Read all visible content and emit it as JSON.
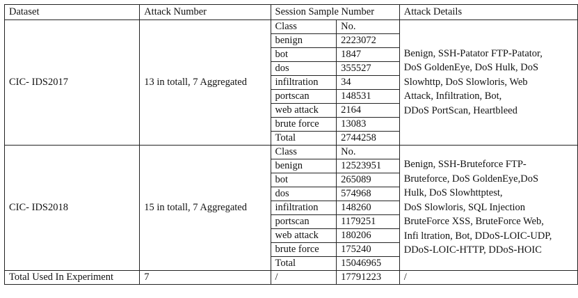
{
  "header": {
    "dataset": "Dataset",
    "attack_number": "Attack Number",
    "session_sample_number": "Session Sample Number",
    "attack_details": "Attack Details"
  },
  "datasets": [
    {
      "name": "CIC- IDS2017",
      "attack_number": "13 in totall, 7 Aggregated",
      "class_header": "Class",
      "no_header": "No.",
      "rows": [
        {
          "cls": "benign",
          "no": "2223072"
        },
        {
          "cls": "bot",
          "no": "1847"
        },
        {
          "cls": "dos",
          "no": "355527"
        },
        {
          "cls": "infiltration",
          "no": "34"
        },
        {
          "cls": "portscan",
          "no": "148531"
        },
        {
          "cls": "web attack",
          "no": "2164"
        },
        {
          "cls": "brute force",
          "no": "13083"
        },
        {
          "cls": "Total",
          "no": "2744258"
        }
      ],
      "details_lines": [
        "Benign, SSH-Patator FTP-Patator,",
        "DoS GoldenEye, DoS Hulk, DoS",
        "Slowhttp, DoS Slowloris, Web",
        "Attack, Infiltration, Bot,",
        "DDoS PortScan, Heartbleed"
      ]
    },
    {
      "name": "CIC- IDS2018",
      "attack_number": "15 in totall, 7 Aggregated",
      "class_header": "Class",
      "no_header": "No.",
      "rows": [
        {
          "cls": "benign",
          "no": "12523951"
        },
        {
          "cls": "bot",
          "no": "265089"
        },
        {
          "cls": "dos",
          "no": "574968"
        },
        {
          "cls": "infiltration",
          "no": "148260"
        },
        {
          "cls": "portscan",
          "no": "1179251"
        },
        {
          "cls": "web attack",
          "no": "180206"
        },
        {
          "cls": "brute force",
          "no": "175240"
        },
        {
          "cls": "Total",
          "no": "15046965"
        }
      ],
      "details_lines": [
        "Benign, SSH-Bruteforce FTP-",
        "Bruteforce, DoS GoldenEye,DoS",
        "Hulk, DoS Slowhttptest,",
        "DoS Slowloris, SQL Injection",
        "BruteForce XSS, BruteForce Web,",
        "Infi ltration, Bot, DDoS-LOIC-UDP,",
        "DDoS-LOIC-HTTP, DDoS-HOIC"
      ]
    }
  ],
  "footer": {
    "label": "Total Used In Experiment",
    "attack_number": "7",
    "class": "/",
    "no": "17791223",
    "details": "/"
  }
}
